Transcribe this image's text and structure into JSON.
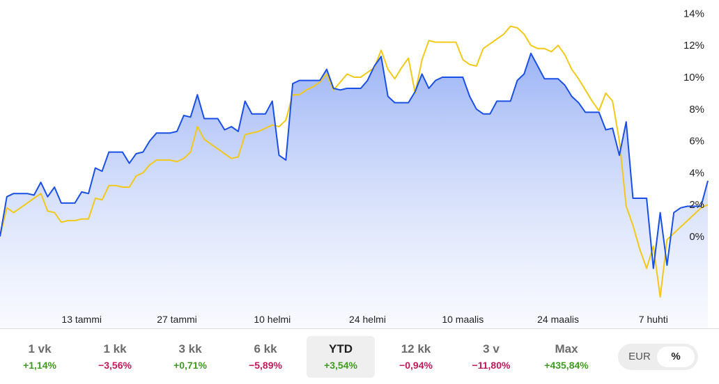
{
  "chart_data": {
    "type": "line",
    "y_unit": "%",
    "ylim": [
      -5.2,
      14.5
    ],
    "y_ticks": [
      "14%",
      "12%",
      "10%",
      "8%",
      "6%",
      "4%",
      "2%",
      "0%"
    ],
    "y_tick_values": [
      14,
      12,
      10,
      8,
      6,
      4,
      2,
      0
    ],
    "x_ticks": [
      "13 tammi",
      "27 tammi",
      "10 helmi",
      "24 helmi",
      "10 maalis",
      "24 maalis",
      "7 huhti"
    ],
    "x_tick_values": [
      12,
      26,
      40,
      54,
      68,
      82,
      96
    ],
    "xlim": [
      0,
      104
    ],
    "grid": false,
    "fill_under_first_series": true,
    "series": [
      {
        "color": "#1a4fe6",
        "x": [
          0,
          1,
          2,
          3,
          4,
          5,
          6,
          7,
          8,
          9,
          10,
          11,
          12,
          13,
          14,
          15,
          16,
          17,
          18,
          19,
          20,
          21,
          22,
          23,
          24,
          25,
          26,
          27,
          28,
          29,
          30,
          31,
          32,
          33,
          34,
          35,
          36,
          37,
          38,
          39,
          40,
          41,
          42,
          43,
          44,
          45,
          46,
          47,
          48,
          49,
          50,
          51,
          52,
          53,
          54,
          55,
          56,
          57,
          58,
          59,
          60,
          61,
          62,
          63,
          64,
          65,
          66,
          67,
          68,
          69,
          70,
          71,
          72,
          73,
          74,
          75,
          76,
          77,
          78,
          79,
          80,
          81,
          82,
          83,
          84,
          85,
          86,
          87,
          88,
          89,
          90,
          91,
          92,
          93,
          94,
          95,
          96,
          97,
          98,
          99,
          100,
          101,
          102,
          103,
          104
        ],
        "values": [
          0,
          2.5,
          2.7,
          2.7,
          2.7,
          2.6,
          3.4,
          2.5,
          3.1,
          2.1,
          2.1,
          2.1,
          2.8,
          2.7,
          4.3,
          4.1,
          5.3,
          5.3,
          5.3,
          4.6,
          5.2,
          5.3,
          6,
          6.5,
          6.5,
          6.5,
          6.6,
          7.6,
          7.5,
          8.9,
          7.4,
          7.4,
          7.4,
          6.7,
          6.9,
          6.6,
          8.5,
          7.7,
          7.7,
          7.7,
          8.5,
          5.1,
          4.8,
          9.6,
          9.8,
          9.8,
          9.8,
          9.8,
          10.5,
          9.3,
          9.2,
          9.3,
          9.3,
          9.3,
          9.8,
          10.7,
          11.3,
          8.8,
          8.4,
          8.4,
          8.4,
          9.1,
          10.2,
          9.3,
          9.8,
          10,
          10,
          10,
          10,
          8.8,
          8,
          7.7,
          7.7,
          8.5,
          8.5,
          8.5,
          9.8,
          10.2,
          11.5,
          10.7,
          9.9,
          9.9,
          9.9,
          9.5,
          8.8,
          8.4,
          7.8,
          7.8,
          7.8,
          6.7,
          6.8,
          5.1,
          7.2,
          2.4,
          2.4,
          2.4,
          -2,
          1.5,
          -1.8,
          1.5,
          1.8,
          1.9,
          1.9,
          1.9,
          3.5
        ]
      },
      {
        "color": "#f2c919",
        "x": [
          0,
          1,
          2,
          3,
          4,
          5,
          6,
          7,
          8,
          9,
          10,
          11,
          12,
          13,
          14,
          15,
          16,
          17,
          18,
          19,
          20,
          21,
          22,
          23,
          24,
          25,
          26,
          27,
          28,
          29,
          30,
          31,
          32,
          33,
          34,
          35,
          36,
          37,
          38,
          39,
          40,
          41,
          42,
          43,
          44,
          45,
          46,
          47,
          48,
          49,
          50,
          51,
          52,
          53,
          54,
          55,
          56,
          57,
          58,
          59,
          60,
          61,
          62,
          63,
          64,
          65,
          66,
          67,
          68,
          69,
          70,
          71,
          72,
          73,
          74,
          75,
          76,
          77,
          78,
          79,
          80,
          81,
          82,
          83,
          84,
          85,
          86,
          87,
          88,
          89,
          90,
          91,
          92,
          93,
          94,
          95,
          96,
          97,
          98,
          99,
          100,
          101,
          102,
          103,
          104
        ],
        "values": [
          0,
          1.8,
          1.5,
          1.8,
          2.1,
          2.4,
          2.7,
          1.6,
          1.5,
          0.9,
          1,
          1,
          1.1,
          1.1,
          2.4,
          2.3,
          3.2,
          3.2,
          3.1,
          3.1,
          3.8,
          4,
          4.5,
          4.8,
          4.8,
          4.8,
          4.7,
          4.9,
          5.3,
          6.9,
          6.1,
          5.8,
          5.5,
          5.2,
          4.9,
          5,
          6.4,
          6.5,
          6.6,
          6.8,
          7,
          6.9,
          7.3,
          8.9,
          8.9,
          9.2,
          9.4,
          9.7,
          10.2,
          9.2,
          9.7,
          10.2,
          10,
          10,
          10.3,
          10.6,
          11.7,
          10.5,
          9.9,
          10.6,
          11.2,
          9,
          11.1,
          12.3,
          12.2,
          12.2,
          12.2,
          12.2,
          11.1,
          10.8,
          10.7,
          11.8,
          12.1,
          12.4,
          12.7,
          13.2,
          13.1,
          12.7,
          12,
          11.8,
          11.8,
          11.6,
          12,
          11.4,
          10.5,
          9.9,
          9.2,
          8.5,
          7.9,
          9,
          8.5,
          6,
          1.9,
          0.7,
          -0.8,
          -2,
          -0.6,
          -3.8,
          -0.2,
          0.2,
          0.6,
          1,
          1.4,
          1.8,
          2
        ]
      }
    ]
  },
  "periods": [
    {
      "label": "1 vk",
      "change": "+1,14%"
    },
    {
      "label": "1 kk",
      "change": "−3,56%"
    },
    {
      "label": "3 kk",
      "change": "+0,71%"
    },
    {
      "label": "6 kk",
      "change": "−5,89%"
    },
    {
      "label": "YTD",
      "change": "+3,54%"
    },
    {
      "label": "12 kk",
      "change": "−0,94%"
    },
    {
      "label": "3 v",
      "change": "−11,80%"
    },
    {
      "label": "Max",
      "change": "+435,84%"
    }
  ],
  "active_period": "YTD",
  "unit_toggle": {
    "eur_label": "EUR",
    "pct_label": "%",
    "selected": "%"
  },
  "colors": {
    "positive": "#3f9b1f",
    "negative": "#c1195a",
    "blue_line": "#1a4fe6",
    "yellow_line": "#f2c919"
  }
}
